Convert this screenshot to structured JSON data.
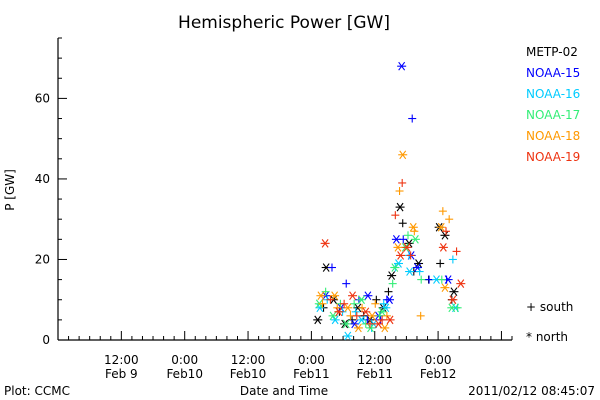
{
  "chart_data": {
    "type": "scatter",
    "title": "Hemispheric Power [GW]",
    "xlabel": "Date and Time",
    "ylabel": "P [GW]",
    "footer_left": "Plot: CCMC",
    "footer_right": "2011/02/12 08:45:07",
    "x_unit": "hours from 2011-02-09 00:00",
    "xlim": [
      0,
      86
    ],
    "ylim": [
      0,
      75
    ],
    "yticks": [
      0,
      20,
      40,
      60
    ],
    "grid": false,
    "legend_placement": "right",
    "xticks": [
      {
        "x": 12,
        "line1": "12:00",
        "line2": "Feb 9"
      },
      {
        "x": 24,
        "line1": "0:00",
        "line2": "Feb10"
      },
      {
        "x": 36,
        "line1": "12:00",
        "line2": "Feb10"
      },
      {
        "x": 48,
        "line1": "0:00",
        "line2": "Feb11"
      },
      {
        "x": 60,
        "line1": "12:00",
        "line2": "Feb11"
      },
      {
        "x": 72,
        "line1": "0:00",
        "line2": "Feb12"
      }
    ],
    "marker_legend": [
      {
        "symbol": "+",
        "label": "south"
      },
      {
        "symbol": "*",
        "label": "north"
      }
    ],
    "series": [
      {
        "name": "METP-02",
        "color": "#000000",
        "south": [
          [
            50.3,
            8
          ],
          [
            53.3,
            7
          ],
          [
            55.7,
            5
          ],
          [
            57.9,
            6
          ],
          [
            60.3,
            10
          ],
          [
            62.6,
            12
          ],
          [
            65.3,
            29
          ],
          [
            67.4,
            17
          ],
          [
            70.2,
            15
          ],
          [
            72.4,
            19
          ],
          [
            74.6,
            10
          ]
        ],
        "north": [
          [
            49.2,
            5
          ],
          [
            50.8,
            18
          ],
          [
            52.2,
            10
          ],
          [
            54.3,
            4
          ],
          [
            56.8,
            8
          ],
          [
            59.1,
            5
          ],
          [
            61.6,
            8
          ],
          [
            63.2,
            16
          ],
          [
            64.8,
            33
          ],
          [
            66.5,
            24
          ],
          [
            68.3,
            19
          ],
          [
            73.3,
            26
          ],
          [
            75.0,
            12
          ],
          [
            72.2,
            28
          ]
        ]
      },
      {
        "name": "NOAA-15",
        "color": "#0000ff",
        "south": [
          [
            51.9,
            18
          ],
          [
            54.6,
            14
          ],
          [
            57.0,
            10
          ],
          [
            58.6,
            5
          ],
          [
            61.1,
            5
          ],
          [
            62.3,
            10
          ],
          [
            65.4,
            25
          ],
          [
            67.1,
            55
          ],
          [
            70.3,
            15
          ],
          [
            73.6,
            15
          ]
        ],
        "north": [
          [
            50.7,
            11
          ],
          [
            53.6,
            8
          ],
          [
            56.2,
            4
          ],
          [
            58.7,
            11
          ],
          [
            60.7,
            6
          ],
          [
            62.8,
            10
          ],
          [
            64.1,
            25
          ],
          [
            65.1,
            68
          ],
          [
            66.9,
            21
          ],
          [
            68.1,
            18
          ],
          [
            73.9,
            15
          ]
        ]
      },
      {
        "name": "NOAA-16",
        "color": "#00ccff",
        "south": [
          [
            51.0,
            10
          ],
          [
            53.9,
            7
          ],
          [
            56.4,
            7
          ],
          [
            59.4,
            3
          ],
          [
            61.7,
            9
          ],
          [
            63.9,
            18
          ],
          [
            66.5,
            21
          ],
          [
            68.5,
            17
          ],
          [
            74.8,
            20
          ]
        ],
        "north": [
          [
            49.6,
            8
          ],
          [
            52.5,
            5
          ],
          [
            54.9,
            1
          ],
          [
            57.5,
            5
          ],
          [
            59.8,
            4
          ],
          [
            62.1,
            8
          ],
          [
            64.5,
            19
          ],
          [
            66.6,
            17
          ],
          [
            71.7,
            15
          ],
          [
            75.3,
            8
          ]
        ]
      },
      {
        "name": "NOAA-17",
        "color": "#33ee77",
        "south": [
          [
            50.7,
            12
          ],
          [
            53.5,
            9
          ],
          [
            56.1,
            9
          ],
          [
            58.3,
            4
          ],
          [
            60.9,
            6
          ],
          [
            63.4,
            14
          ],
          [
            66.3,
            26
          ],
          [
            68.8,
            15
          ],
          [
            72.7,
            15
          ],
          [
            75.7,
            8
          ]
        ],
        "north": [
          [
            49.5,
            9
          ],
          [
            52.1,
            6
          ],
          [
            54.6,
            4
          ],
          [
            57.5,
            10
          ],
          [
            59.2,
            3
          ],
          [
            61.4,
            7
          ],
          [
            63.8,
            18
          ],
          [
            65.8,
            23
          ],
          [
            67.7,
            25
          ],
          [
            74.6,
            8
          ]
        ]
      },
      {
        "name": "NOAA-18",
        "color": "#ff9900",
        "south": [
          [
            50.1,
            9
          ],
          [
            52.9,
            8
          ],
          [
            55.4,
            6
          ],
          [
            57.6,
            8
          ],
          [
            60.1,
            9
          ],
          [
            62.3,
            6
          ],
          [
            64.7,
            37
          ],
          [
            67.5,
            27
          ],
          [
            68.7,
            6
          ],
          [
            72.9,
            32
          ],
          [
            74.1,
            30
          ]
        ],
        "north": [
          [
            49.8,
            11
          ],
          [
            52.4,
            11
          ],
          [
            54.9,
            8
          ],
          [
            56.9,
            3
          ],
          [
            59.5,
            6
          ],
          [
            61.9,
            3
          ],
          [
            64.4,
            23
          ],
          [
            65.3,
            46
          ],
          [
            67.3,
            28
          ],
          [
            72.6,
            28
          ],
          [
            73.3,
            13
          ]
        ]
      },
      {
        "name": "NOAA-19",
        "color": "#ee3311",
        "south": [
          [
            51.6,
            10
          ],
          [
            54.2,
            9
          ],
          [
            56.6,
            6
          ],
          [
            59.1,
            4
          ],
          [
            61.4,
            5
          ],
          [
            63.9,
            31
          ],
          [
            65.2,
            39
          ],
          [
            66.8,
            21
          ],
          [
            73.5,
            27
          ],
          [
            75.5,
            22
          ]
        ],
        "north": [
          [
            50.6,
            24
          ],
          [
            53.2,
            7
          ],
          [
            55.8,
            11
          ],
          [
            58.3,
            7
          ],
          [
            60.7,
            4
          ],
          [
            62.9,
            5
          ],
          [
            64.9,
            21
          ],
          [
            66.1,
            23
          ],
          [
            73.0,
            23
          ],
          [
            74.8,
            10
          ],
          [
            76.3,
            14
          ]
        ]
      }
    ]
  }
}
